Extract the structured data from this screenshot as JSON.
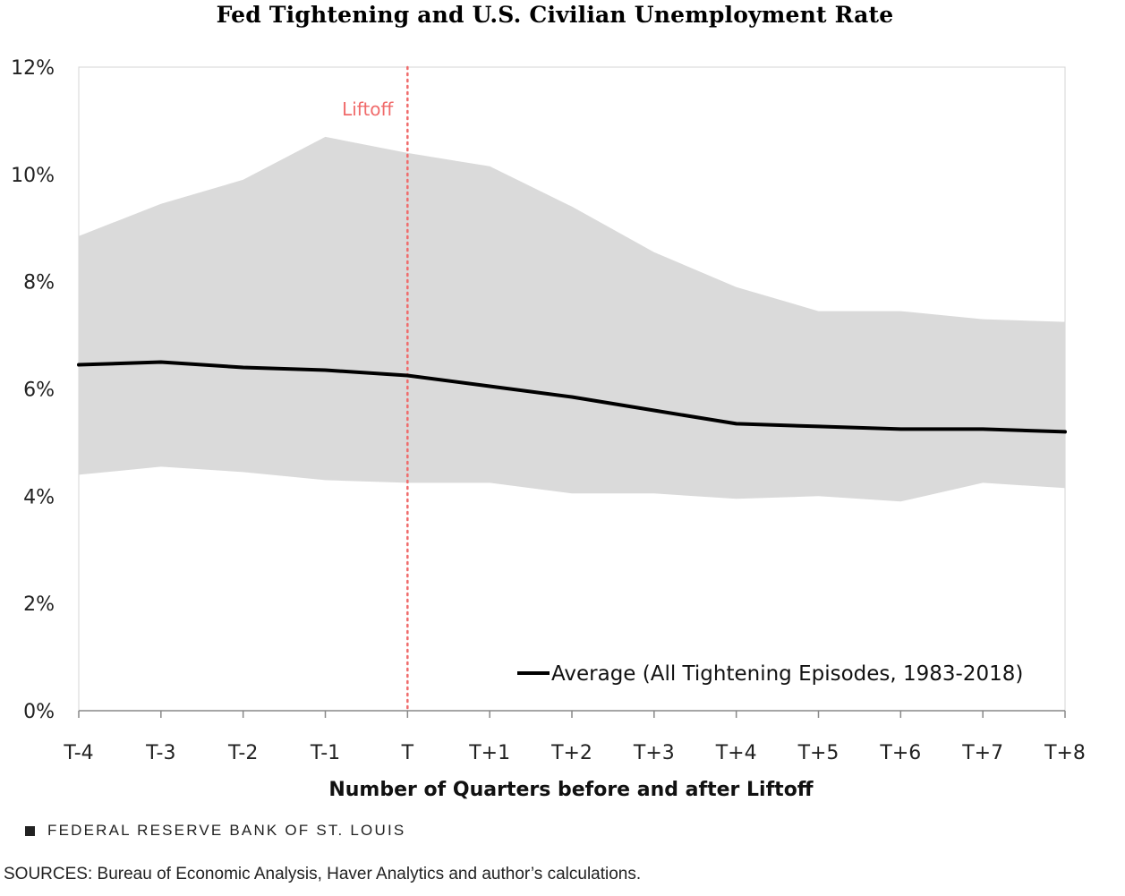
{
  "chart_data": {
    "type": "area",
    "title": "Fed Tightening and U.S. Civilian Unemployment Rate",
    "xlabel": "Number of Quarters before and after Liftoff",
    "ylabel": "",
    "categories": [
      "T-4",
      "T-3",
      "T-2",
      "T-1",
      "T",
      "T+1",
      "T+2",
      "T+3",
      "T+4",
      "T+5",
      "T+6",
      "T+7",
      "T+8"
    ],
    "ylim": [
      0,
      12
    ],
    "yticks": [
      0,
      2,
      4,
      6,
      8,
      10,
      12
    ],
    "ytick_labels": [
      "0%",
      "2%",
      "4%",
      "6%",
      "8%",
      "10%",
      "12%"
    ],
    "range_band": {
      "upper": [
        8.85,
        9.45,
        9.9,
        10.7,
        10.4,
        10.15,
        9.4,
        8.55,
        7.9,
        7.45,
        7.45,
        7.3,
        7.25
      ],
      "lower": [
        4.4,
        4.55,
        4.45,
        4.3,
        4.25,
        4.25,
        4.05,
        4.05,
        3.95,
        4.0,
        3.9,
        4.25,
        4.15
      ],
      "color": "#dadada"
    },
    "series": [
      {
        "name": "Average (All Tightening Episodes, 1983-2018)",
        "values": [
          6.45,
          6.5,
          6.4,
          6.35,
          6.25,
          6.05,
          5.85,
          5.6,
          5.35,
          5.3,
          5.25,
          5.25,
          5.2
        ],
        "color": "#000000"
      }
    ],
    "annotation": {
      "label": "Liftoff",
      "category": "T",
      "color": "#f06b6b"
    },
    "legend_placement": "bottom-right",
    "grid": false
  },
  "footer": {
    "brand": "FEDERAL RESERVE BANK OF ST. LOUIS",
    "sources": "SOURCES: Bureau of Economic Analysis, Haver Analytics and author’s calculations."
  }
}
